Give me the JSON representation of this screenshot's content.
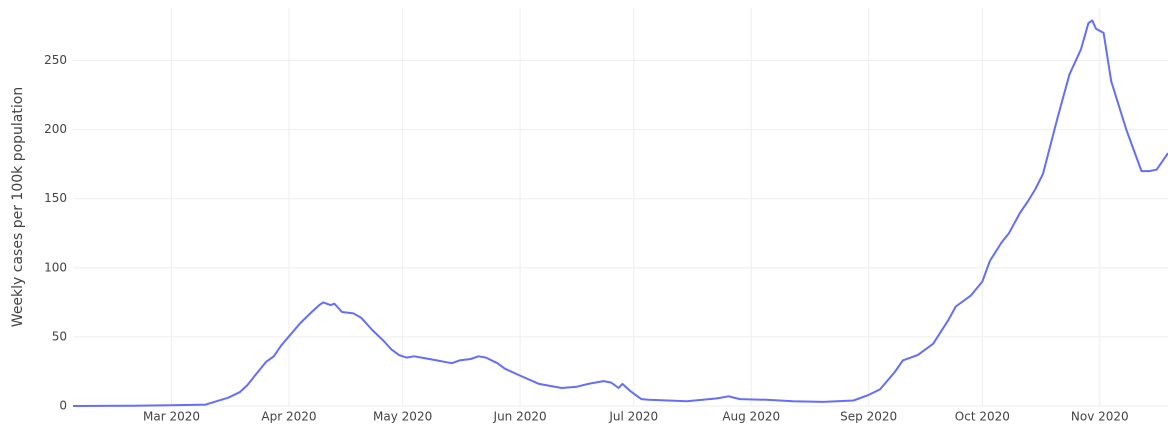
{
  "chart_data": {
    "type": "line",
    "ylabel": "Weekly cases per 100k population",
    "x": [
      "2020-02-04",
      "2020-02-20",
      "2020-03-01",
      "2020-03-10",
      "2020-03-16",
      "2020-03-19",
      "2020-03-21",
      "2020-03-23",
      "2020-03-26",
      "2020-03-28",
      "2020-03-30",
      "2020-04-04",
      "2020-04-07",
      "2020-04-09",
      "2020-04-10",
      "2020-04-12",
      "2020-04-13",
      "2020-04-15",
      "2020-04-18",
      "2020-04-20",
      "2020-04-23",
      "2020-04-26",
      "2020-04-28",
      "2020-04-30",
      "2020-05-02",
      "2020-05-04",
      "2020-05-06",
      "2020-05-08",
      "2020-05-10",
      "2020-05-12",
      "2020-05-14",
      "2020-05-16",
      "2020-05-19",
      "2020-05-21",
      "2020-05-23",
      "2020-05-26",
      "2020-05-28",
      "2020-06-01",
      "2020-06-06",
      "2020-06-12",
      "2020-06-16",
      "2020-06-19",
      "2020-06-23",
      "2020-06-25",
      "2020-06-27",
      "2020-06-28",
      "2020-06-30",
      "2020-07-03",
      "2020-07-05",
      "2020-07-15",
      "2020-07-23",
      "2020-07-26",
      "2020-07-29",
      "2020-08-05",
      "2020-08-12",
      "2020-08-20",
      "2020-08-28",
      "2020-09-01",
      "2020-09-04",
      "2020-09-08",
      "2020-09-10",
      "2020-09-14",
      "2020-09-18",
      "2020-09-22",
      "2020-09-24",
      "2020-09-28",
      "2020-10-01",
      "2020-10-03",
      "2020-10-06",
      "2020-10-08",
      "2020-10-11",
      "2020-10-13",
      "2020-10-15",
      "2020-10-17",
      "2020-10-21",
      "2020-10-24",
      "2020-10-27",
      "2020-10-29",
      "2020-10-30",
      "2020-10-31",
      "2020-11-02",
      "2020-11-04",
      "2020-11-08",
      "2020-11-12",
      "2020-11-14",
      "2020-11-16",
      "2020-11-19"
    ],
    "series": [
      {
        "name": "Weekly cases per 100k population",
        "color": "#636efa",
        "values": [
          0,
          0.2,
          0.5,
          1,
          6,
          10,
          15,
          22,
          32,
          36,
          44,
          60,
          68,
          73,
          75,
          73,
          74,
          68,
          67,
          64,
          55,
          47,
          41,
          37,
          35,
          36,
          35,
          34,
          33,
          32,
          31,
          33,
          34,
          36,
          35,
          31,
          27,
          22,
          16,
          13,
          14,
          16,
          18,
          17,
          13,
          16,
          11,
          5,
          4.5,
          3.5,
          5.5,
          7,
          5,
          4.5,
          3.5,
          3,
          4,
          8,
          12,
          25,
          33,
          37,
          45,
          62,
          72,
          80,
          90,
          105,
          118,
          125,
          140,
          148,
          157,
          168,
          210,
          240,
          258,
          277,
          279,
          273,
          270,
          235,
          200,
          170,
          170,
          171,
          183
        ]
      }
    ],
    "xlim": [
      "2020-02-04",
      "2020-11-19"
    ],
    "xticks": [
      {
        "value": "2020-03-01",
        "label": "Mar 2020"
      },
      {
        "value": "2020-04-01",
        "label": "Apr 2020"
      },
      {
        "value": "2020-05-01",
        "label": "May 2020"
      },
      {
        "value": "2020-06-01",
        "label": "Jun 2020"
      },
      {
        "value": "2020-07-01",
        "label": "Jul 2020"
      },
      {
        "value": "2020-08-01",
        "label": "Aug 2020"
      },
      {
        "value": "2020-09-01",
        "label": "Sep 2020"
      },
      {
        "value": "2020-10-01",
        "label": "Oct 2020"
      },
      {
        "value": "2020-11-01",
        "label": "Nov 2020"
      }
    ],
    "ylim": [
      0,
      288
    ],
    "yticks": [
      0,
      50,
      100,
      150,
      200,
      250
    ],
    "grid": true
  }
}
